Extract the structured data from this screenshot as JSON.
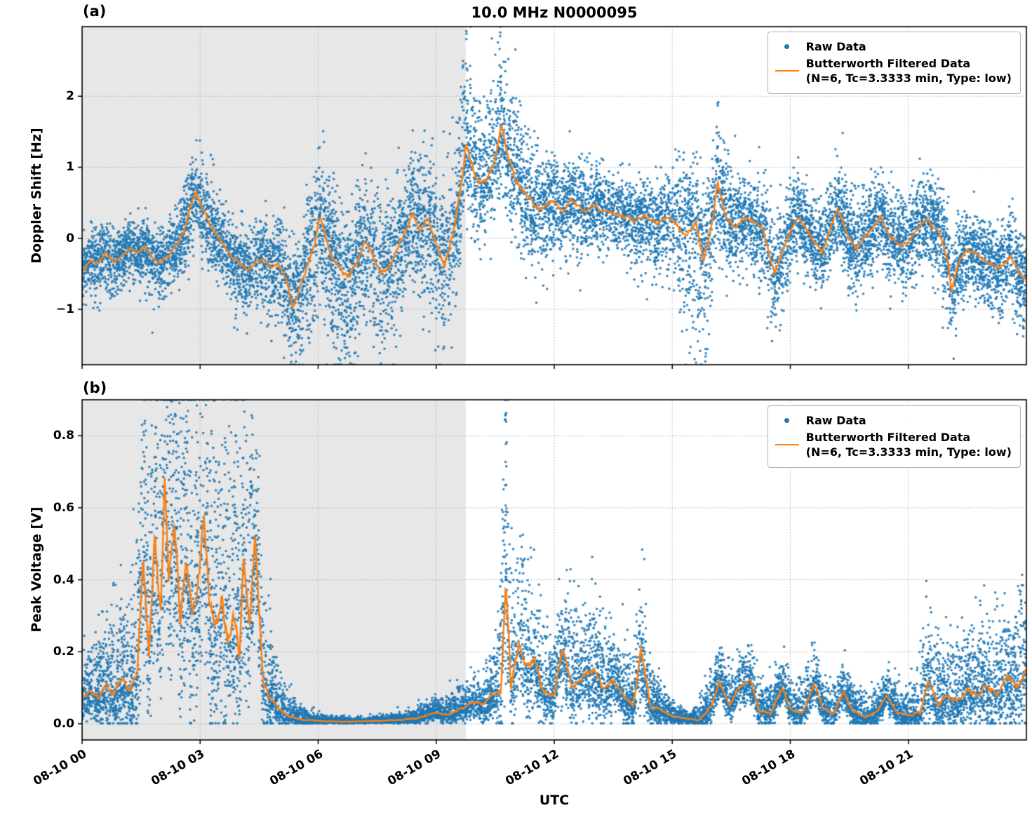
{
  "title": "10.0 MHz N0000095",
  "xlabel": "UTC",
  "legend": {
    "raw_label": "Raw Data",
    "filtered_label": "Butterworth Filtered Data",
    "filtered_sublabel": "(N=6, Tc=3.3333 min, Type: low)"
  },
  "colors": {
    "raw": "#1f77b4",
    "filtered": "#ff7f0e",
    "shade": "#e7e7e7",
    "grid": "#aaaaaa",
    "axis": "#000000"
  },
  "x_axis": {
    "unit": "hours since 08-10 00:00 UTC",
    "range": [
      0,
      24
    ],
    "tick_values": [
      0,
      3,
      6,
      9,
      12,
      15,
      18,
      21
    ],
    "tick_labels": [
      "08-10 00",
      "08-10 03",
      "08-10 06",
      "08-10 09",
      "08-10 12",
      "08-10 15",
      "08-10 18",
      "08-10 21"
    ]
  },
  "shaded_region": {
    "x_range": [
      0,
      9.75
    ]
  },
  "chart_data": [
    {
      "panel_label": "(a)",
      "type": "scatter",
      "ylabel": "Doppler Shift [Hz]",
      "ylim": [
        -1.78,
        2.98
      ],
      "ytick_values": [
        -1,
        0,
        1,
        2
      ],
      "ytick_labels": [
        "−1",
        "0",
        "1",
        "2"
      ],
      "grid": true,
      "legend_position": "upper right",
      "series": [
        {
          "name": "Raw Data",
          "kind": "scatter",
          "model": "filtered_plus_noise",
          "n_points": 12000,
          "seed": 20240810,
          "sigma_x": [
            0,
            1,
            2,
            2.6,
            3,
            3.5,
            4,
            4.5,
            5,
            5.5,
            6,
            6.5,
            7,
            7.5,
            8,
            8.5,
            9,
            9.4,
            9.7,
            10,
            10.5,
            11,
            11.5,
            12,
            12.5,
            13,
            14,
            15,
            15.2,
            15.5,
            16,
            16.2,
            16.5,
            17,
            17.5,
            18,
            18.5,
            19,
            19.4,
            20,
            20.5,
            21,
            21.5,
            22,
            22.5,
            23,
            23.5,
            24
          ],
          "sigma_up": [
            0.2,
            0.2,
            0.22,
            0.3,
            0.3,
            0.28,
            0.25,
            0.3,
            0.35,
            0.4,
            0.5,
            0.45,
            0.45,
            0.45,
            0.45,
            0.5,
            0.5,
            0.6,
            0.8,
            0.7,
            0.6,
            0.55,
            0.4,
            0.32,
            0.3,
            0.28,
            0.25,
            0.3,
            0.6,
            0.35,
            0.4,
            0.6,
            0.35,
            0.3,
            0.35,
            0.3,
            0.3,
            0.3,
            0.4,
            0.3,
            0.32,
            0.3,
            0.35,
            0.3,
            0.28,
            0.25,
            0.3,
            0.3
          ],
          "sigma_down": [
            0.22,
            0.25,
            0.25,
            0.3,
            0.3,
            0.3,
            0.3,
            0.35,
            0.45,
            0.55,
            0.6,
            0.65,
            0.6,
            0.6,
            0.5,
            0.55,
            0.6,
            0.6,
            0.45,
            0.4,
            0.35,
            0.4,
            0.45,
            0.35,
            0.32,
            0.3,
            0.3,
            0.4,
            0.7,
            0.9,
            0.6,
            0.45,
            0.35,
            0.3,
            0.45,
            0.35,
            0.3,
            0.3,
            0.3,
            0.3,
            0.3,
            0.3,
            0.3,
            0.4,
            0.3,
            0.3,
            0.35,
            0.35
          ]
        },
        {
          "name": "Butterworth Filtered Data",
          "kind": "line",
          "x": [
            0,
            0.2,
            0.4,
            0.6,
            0.8,
            1.0,
            1.2,
            1.4,
            1.6,
            1.8,
            2.0,
            2.2,
            2.4,
            2.6,
            2.8,
            2.9,
            3.0,
            3.2,
            3.4,
            3.6,
            3.8,
            4.0,
            4.2,
            4.4,
            4.6,
            4.8,
            5.0,
            5.2,
            5.35,
            5.5,
            5.7,
            5.9,
            6.05,
            6.2,
            6.4,
            6.6,
            6.8,
            7.0,
            7.2,
            7.4,
            7.6,
            7.8,
            8.0,
            8.2,
            8.4,
            8.6,
            8.8,
            9.0,
            9.2,
            9.4,
            9.6,
            9.75,
            9.9,
            10.1,
            10.3,
            10.5,
            10.65,
            10.8,
            11.0,
            11.2,
            11.4,
            11.6,
            11.8,
            12.0,
            12.2,
            12.4,
            12.6,
            12.8,
            13.0,
            13.2,
            13.5,
            13.8,
            14.0,
            14.3,
            14.6,
            14.9,
            15.1,
            15.35,
            15.6,
            15.8,
            16.0,
            16.15,
            16.35,
            16.6,
            16.8,
            17.0,
            17.3,
            17.6,
            17.8,
            18.0,
            18.2,
            18.5,
            18.8,
            19.0,
            19.2,
            19.45,
            19.7,
            20.0,
            20.3,
            20.5,
            20.8,
            21.0,
            21.2,
            21.5,
            21.8,
            22.0,
            22.1,
            22.25,
            22.5,
            22.8,
            23.0,
            23.3,
            23.6,
            23.8,
            24
          ],
          "y": [
            -0.5,
            -0.3,
            -0.35,
            -0.2,
            -0.35,
            -0.25,
            -0.15,
            -0.2,
            -0.1,
            -0.3,
            -0.35,
            -0.25,
            -0.1,
            0.1,
            0.55,
            0.65,
            0.5,
            0.25,
            0.05,
            -0.1,
            -0.25,
            -0.35,
            -0.45,
            -0.35,
            -0.3,
            -0.4,
            -0.35,
            -0.6,
            -1.0,
            -0.75,
            -0.45,
            -0.1,
            0.35,
            0.0,
            -0.3,
            -0.5,
            -0.55,
            -0.3,
            -0.05,
            -0.25,
            -0.5,
            -0.4,
            -0.15,
            0.1,
            0.35,
            0.1,
            0.3,
            -0.05,
            -0.35,
            0.0,
            0.6,
            1.3,
            1.0,
            0.7,
            0.9,
            1.1,
            1.55,
            1.2,
            0.85,
            0.7,
            0.5,
            0.4,
            0.45,
            0.55,
            0.35,
            0.55,
            0.45,
            0.35,
            0.5,
            0.4,
            0.35,
            0.3,
            0.25,
            0.3,
            0.2,
            0.3,
            0.2,
            0.1,
            0.25,
            -0.35,
            0.2,
            0.75,
            0.3,
            0.15,
            0.3,
            0.25,
            0.1,
            -0.5,
            -0.2,
            0.1,
            0.3,
            0.05,
            -0.2,
            0.1,
            0.45,
            0.05,
            -0.15,
            0.1,
            0.3,
            0.05,
            -0.1,
            -0.05,
            0.1,
            0.3,
            0.05,
            -0.3,
            -0.75,
            -0.35,
            -0.15,
            -0.25,
            -0.35,
            -0.45,
            -0.25,
            -0.5,
            -0.6
          ],
          "jitter_scale": 0.12,
          "step_hours": 0.02,
          "smooth": 0.75
        }
      ]
    },
    {
      "panel_label": "(b)",
      "type": "scatter",
      "ylabel": "Peak Voltage [V]",
      "ylim": [
        -0.045,
        0.9
      ],
      "ytick_values": [
        0.0,
        0.2,
        0.4,
        0.6,
        0.8
      ],
      "ytick_labels": [
        "0.0",
        "0.2",
        "0.4",
        "0.6",
        "0.8"
      ],
      "grid": true,
      "legend_position": "upper right",
      "series": [
        {
          "name": "Raw Data",
          "kind": "scatter",
          "model": "filtered_plus_noise",
          "n_points": 12000,
          "seed": 808095,
          "sigma_x": [
            0,
            0.5,
            1.0,
            1.3,
            1.6,
            2.0,
            2.5,
            3.0,
            3.5,
            4.0,
            4.4,
            4.7,
            5.0,
            5.5,
            6.0,
            7.0,
            8.0,
            9.0,
            9.5,
            10.0,
            10.5,
            10.77,
            11.0,
            11.3,
            11.6,
            12.0,
            12.3,
            12.7,
            13.0,
            13.5,
            14.0,
            14.2,
            14.5,
            15.0,
            15.5,
            16.0,
            16.5,
            17.0,
            17.5,
            18.0,
            18.6,
            19.0,
            19.5,
            20.0,
            20.5,
            21.0,
            21.5,
            22.0,
            22.5,
            23.0,
            23.5,
            24
          ],
          "sigma_up": [
            0.05,
            0.09,
            0.12,
            0.16,
            0.25,
            0.3,
            0.3,
            0.28,
            0.3,
            0.28,
            0.22,
            0.12,
            0.05,
            0.02,
            0.008,
            0.005,
            0.008,
            0.02,
            0.03,
            0.04,
            0.06,
            0.3,
            0.12,
            0.15,
            0.1,
            0.07,
            0.12,
            0.09,
            0.12,
            0.07,
            0.06,
            0.12,
            0.05,
            0.02,
            0.01,
            0.05,
            0.05,
            0.05,
            0.04,
            0.04,
            0.05,
            0.04,
            0.04,
            0.03,
            0.04,
            0.03,
            0.1,
            0.08,
            0.1,
            0.1,
            0.12,
            0.12
          ],
          "down_from_sigma": 0.5,
          "down_from_line": 0.5,
          "down_const": 0.003,
          "floor": 0.001
        },
        {
          "name": "Butterworth Filtered Data",
          "kind": "line",
          "x": [
            0,
            0.2,
            0.4,
            0.6,
            0.8,
            1.0,
            1.2,
            1.4,
            1.55,
            1.7,
            1.85,
            2.0,
            2.1,
            2.2,
            2.35,
            2.5,
            2.65,
            2.8,
            2.95,
            3.1,
            3.25,
            3.4,
            3.55,
            3.7,
            3.85,
            4.0,
            4.1,
            4.25,
            4.4,
            4.6,
            4.8,
            5.0,
            5.3,
            5.6,
            6.0,
            6.5,
            7.0,
            7.5,
            8.0,
            8.5,
            9.0,
            9.3,
            9.6,
            9.9,
            10.2,
            10.45,
            10.65,
            10.77,
            10.9,
            11.1,
            11.3,
            11.5,
            11.7,
            12.0,
            12.2,
            12.45,
            12.7,
            13.0,
            13.2,
            13.5,
            13.8,
            14.0,
            14.2,
            14.45,
            14.7,
            15.0,
            15.3,
            15.7,
            16.0,
            16.2,
            16.45,
            16.7,
            17.0,
            17.2,
            17.5,
            17.8,
            18.0,
            18.3,
            18.6,
            18.85,
            19.1,
            19.35,
            19.6,
            19.9,
            20.2,
            20.45,
            20.7,
            21.0,
            21.3,
            21.5,
            21.75,
            22.0,
            22.25,
            22.5,
            22.75,
            23.0,
            23.25,
            23.5,
            23.75,
            24
          ],
          "y": [
            0.07,
            0.1,
            0.07,
            0.11,
            0.08,
            0.12,
            0.1,
            0.14,
            0.45,
            0.2,
            0.55,
            0.3,
            0.67,
            0.4,
            0.55,
            0.3,
            0.45,
            0.32,
            0.38,
            0.56,
            0.33,
            0.28,
            0.35,
            0.25,
            0.3,
            0.2,
            0.48,
            0.28,
            0.52,
            0.12,
            0.07,
            0.04,
            0.02,
            0.012,
            0.008,
            0.006,
            0.006,
            0.008,
            0.01,
            0.015,
            0.03,
            0.025,
            0.04,
            0.06,
            0.05,
            0.08,
            0.1,
            0.44,
            0.12,
            0.22,
            0.15,
            0.18,
            0.1,
            0.08,
            0.21,
            0.1,
            0.13,
            0.15,
            0.1,
            0.12,
            0.07,
            0.05,
            0.2,
            0.05,
            0.04,
            0.02,
            0.015,
            0.01,
            0.05,
            0.12,
            0.05,
            0.1,
            0.12,
            0.04,
            0.03,
            0.1,
            0.04,
            0.03,
            0.11,
            0.04,
            0.03,
            0.09,
            0.03,
            0.02,
            0.03,
            0.08,
            0.03,
            0.025,
            0.03,
            0.12,
            0.05,
            0.08,
            0.06,
            0.1,
            0.08,
            0.1,
            0.09,
            0.13,
            0.1,
            0.15
          ],
          "jitter_scale": 0.12,
          "step_hours": 0.02,
          "smooth": 0.75
        }
      ]
    }
  ]
}
